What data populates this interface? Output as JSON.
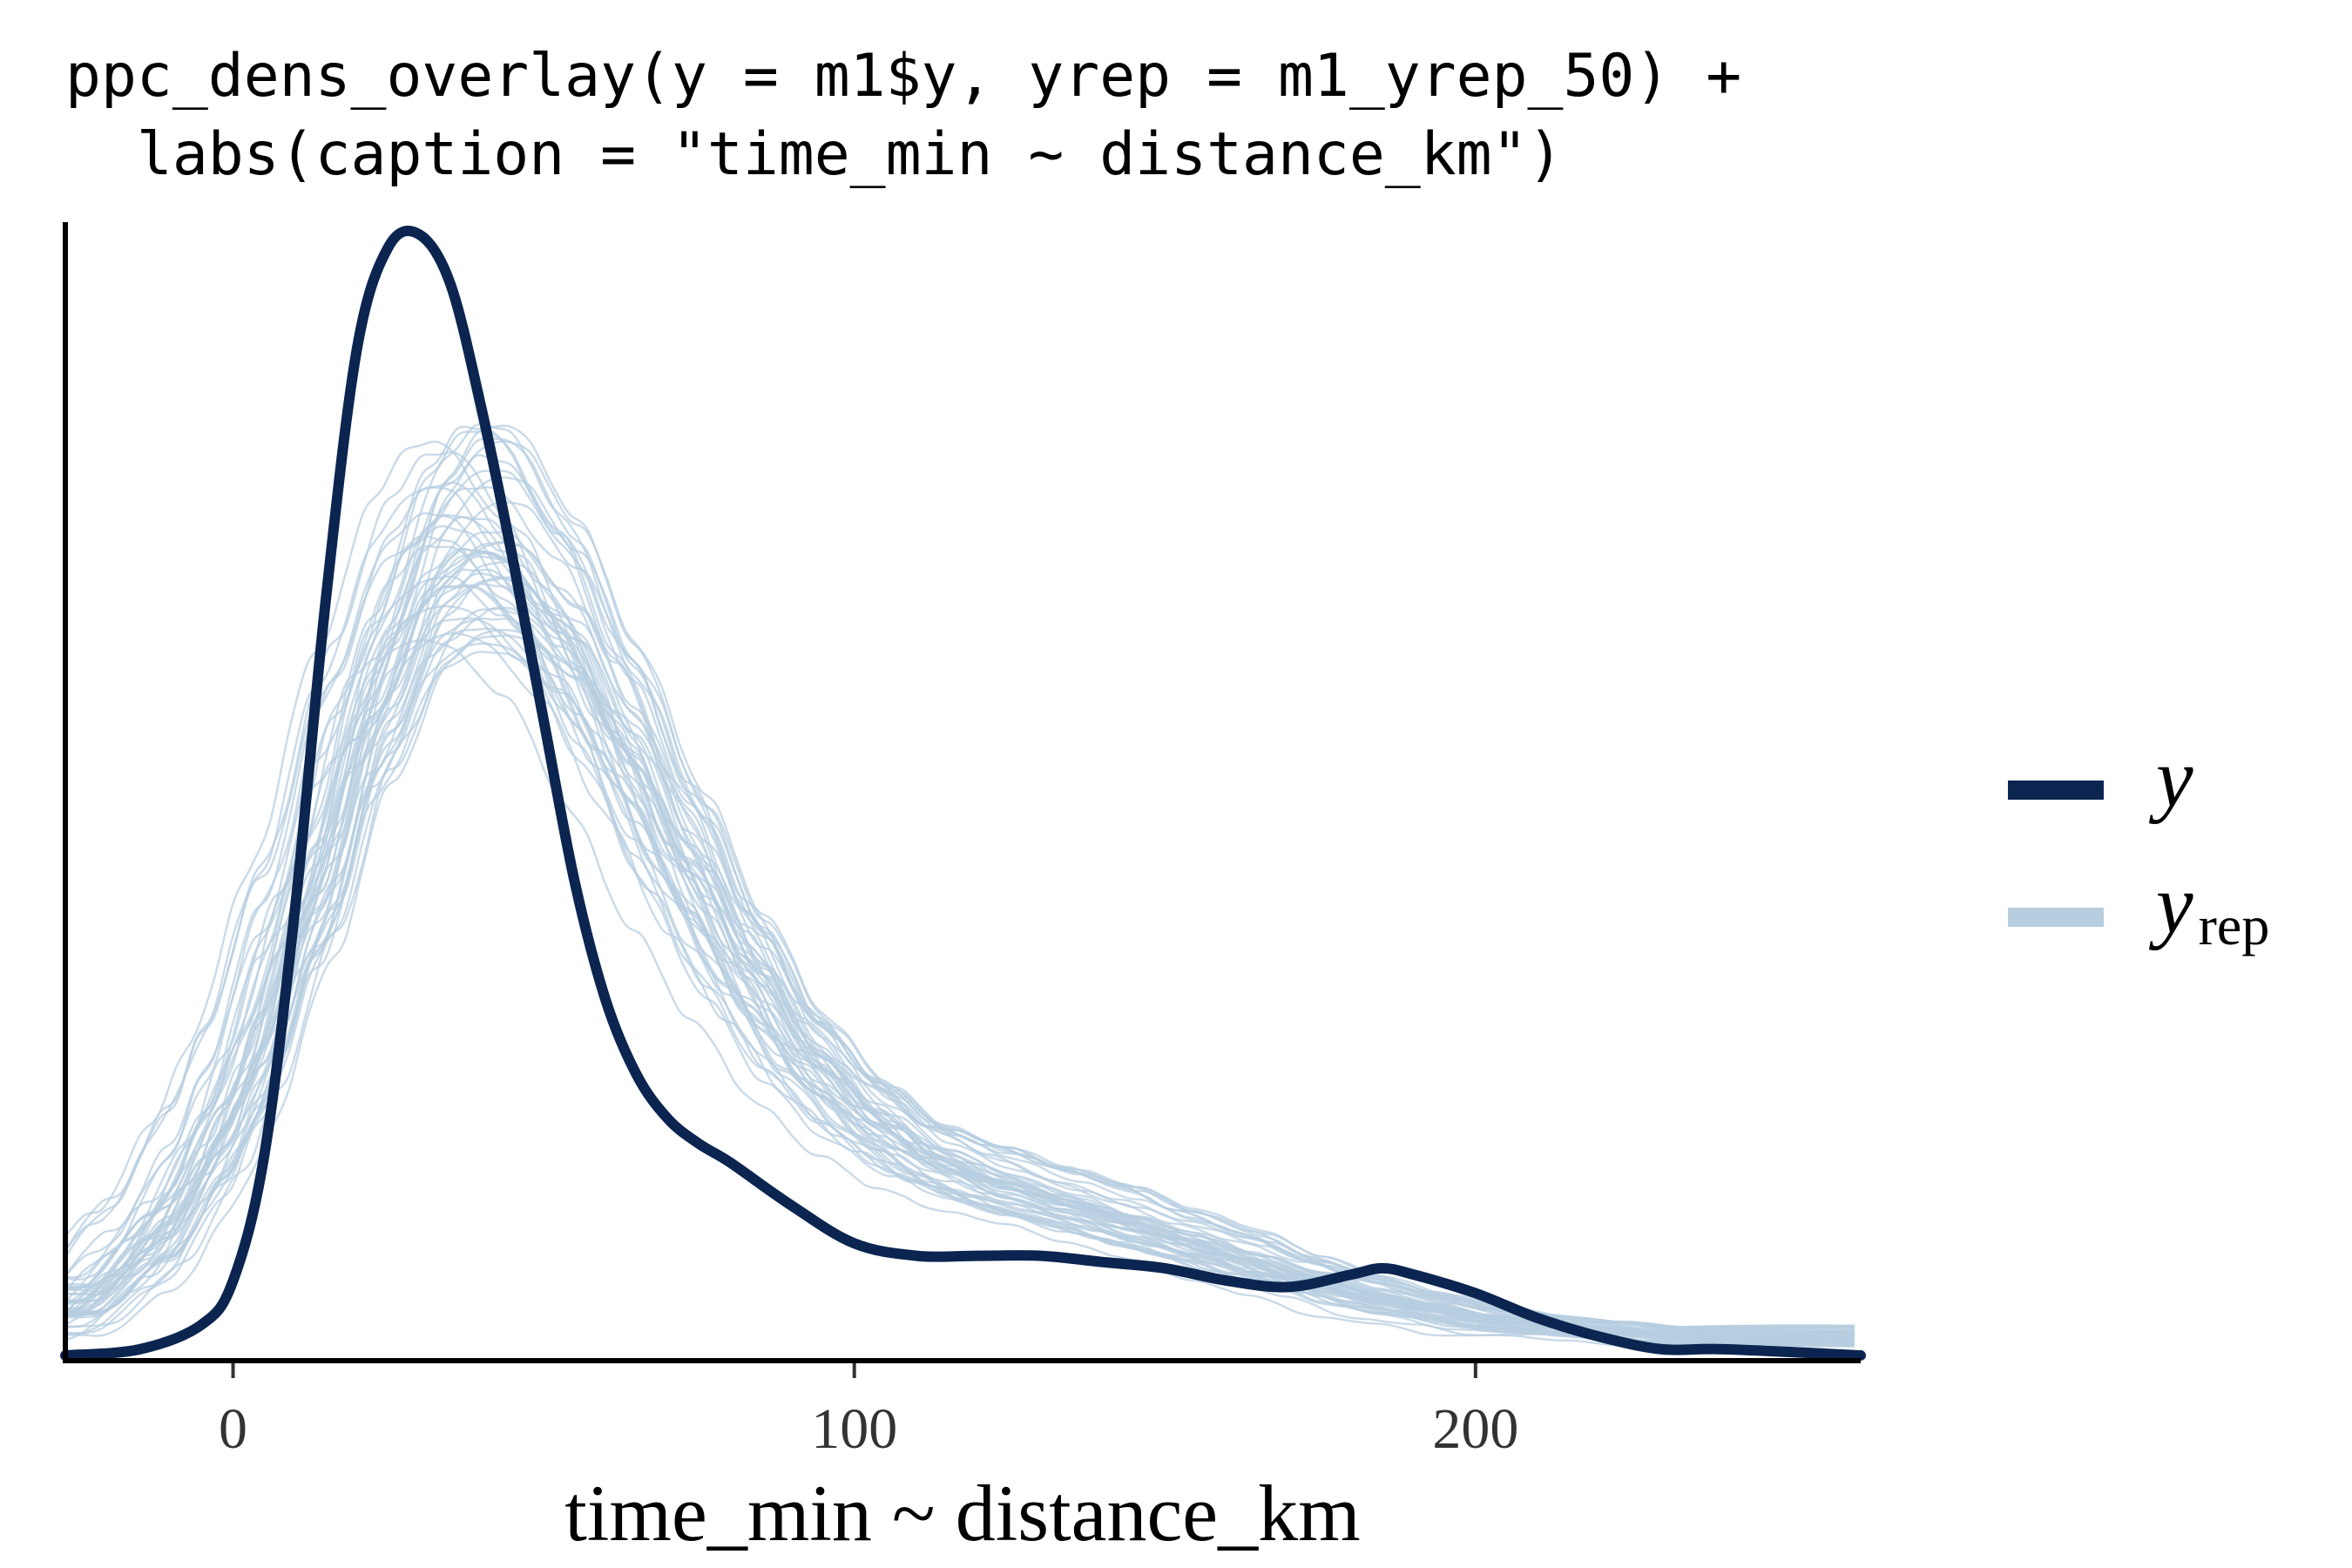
{
  "title_lines": [
    "ppc_dens_overlay(y = m1$y, yrep = m1_yrep_50) +",
    "  labs(caption = \"time_min ~ distance_km\")"
  ],
  "legend": {
    "y_label": "y",
    "yrep_main": "y",
    "yrep_sub": "rep"
  },
  "colors": {
    "y": "#0b2550",
    "yrep": "#b7cde0",
    "axis": "#000000"
  },
  "chart_data": {
    "type": "line",
    "xlabel": "time_min ~ distance_km",
    "ylabel": "",
    "xlim": [
      -27,
      262
    ],
    "ylim": [
      0,
      0.0182
    ],
    "x_ticks": [
      "0",
      "100",
      "200"
    ],
    "x_tick_values": [
      0,
      100,
      200
    ],
    "y_axis_ticks_shown": false,
    "grid": false,
    "legend_position": "right",
    "series": [
      {
        "name": "y",
        "x": [
          -27,
          -15,
          -5,
          0,
          5,
          10,
          15,
          20,
          25,
          30,
          35,
          40,
          45,
          50,
          55,
          60,
          65,
          70,
          75,
          80,
          90,
          100,
          110,
          120,
          130,
          140,
          150,
          160,
          170,
          180,
          185,
          190,
          200,
          210,
          220,
          230,
          240,
          262
        ],
        "y": [
          0.0,
          0.0001,
          0.0005,
          0.0012,
          0.0032,
          0.0072,
          0.0122,
          0.0162,
          0.0178,
          0.018,
          0.0172,
          0.0152,
          0.0128,
          0.0102,
          0.0076,
          0.0057,
          0.0045,
          0.0038,
          0.0034,
          0.0031,
          0.0024,
          0.0018,
          0.0016,
          0.0016,
          0.0016,
          0.0015,
          0.0014,
          0.0012,
          0.0011,
          0.0013,
          0.0014,
          0.0013,
          0.001,
          0.0006,
          0.0003,
          0.0001,
          0.0001,
          0.0
        ]
      }
    ],
    "yrep_draws": 50,
    "yrep_summary": {
      "x": [
        -27,
        -15,
        -5,
        0,
        10,
        20,
        30,
        35,
        40,
        50,
        60,
        70,
        80,
        90,
        100,
        110,
        120,
        130,
        140,
        150,
        160,
        170,
        180,
        190,
        200,
        210,
        220,
        230,
        240,
        250,
        262
      ],
      "mean": [
        0.0008,
        0.0018,
        0.0033,
        0.0045,
        0.0072,
        0.0103,
        0.0125,
        0.013,
        0.013,
        0.012,
        0.0102,
        0.0082,
        0.0064,
        0.0049,
        0.0039,
        0.0032,
        0.0028,
        0.0025,
        0.0022,
        0.0019,
        0.0016,
        0.0013,
        0.001,
        0.0008,
        0.0006,
        0.0005,
        0.0004,
        0.0003,
        0.0003,
        0.0003,
        0.0003
      ],
      "spread": [
        0.0006,
        0.0009,
        0.0011,
        0.0012,
        0.0013,
        0.0016,
        0.002,
        0.0022,
        0.0022,
        0.0018,
        0.0016,
        0.0014,
        0.0011,
        0.0009,
        0.0008,
        0.0007,
        0.0007,
        0.0006,
        0.0006,
        0.0005,
        0.0005,
        0.0004,
        0.0004,
        0.0003,
        0.0003,
        0.0002,
        0.0002,
        0.0002,
        0.0002,
        0.0002,
        0.0002
      ]
    }
  }
}
